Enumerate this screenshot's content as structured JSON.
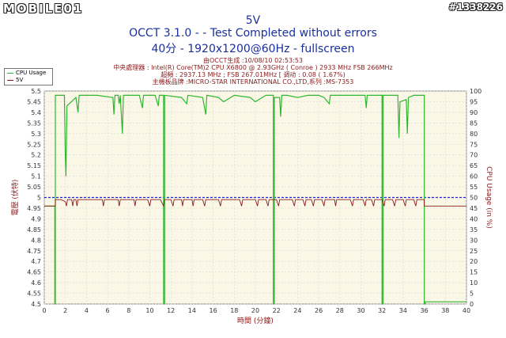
{
  "watermark": "MOBILE01",
  "photo_id": "#1338226",
  "title_lines": [
    "5V",
    "OCCT 3.1.0 -  - Test Completed without errors",
    "40分 - 1920x1200@60Hz - fullscreen"
  ],
  "info_lines": [
    "由OCCT生成 :10/08/10 02:53:53",
    "中央處理器 : Intel(R) Core(TM)2 CPU X6800 @ 2.93GHz ( Conroe ) 2933 MHz FSB 266MHz",
    "超頻 : 2937.13 MHz ; FSB 267.01MHz [ 调动 : 0.08 ( 1.67%)",
    "主機板品牌 :MICRO-STAR INTERNATIONAL CO.,LTD,系列 :MS-7353"
  ],
  "chart_data": {
    "type": "line",
    "xlabel": "時間 (分鐘)",
    "ylabel": "電壓 (伏特)",
    "y2label": "CPU Usage (in %)",
    "xlim": [
      0,
      40
    ],
    "ylim": [
      4.5,
      5.5
    ],
    "y2lim": [
      0,
      100
    ],
    "x_ticks": [
      0,
      2,
      4,
      6,
      8,
      10,
      12,
      14,
      16,
      18,
      20,
      22,
      24,
      26,
      28,
      30,
      32,
      34,
      36,
      38,
      40
    ],
    "y_ticks": [
      4.5,
      4.55,
      4.6,
      4.65,
      4.7,
      4.75,
      4.8,
      4.85,
      4.9,
      4.95,
      5,
      5.05,
      5.1,
      5.15,
      5.2,
      5.25,
      5.3,
      5.35,
      5.4,
      5.45,
      5.5
    ],
    "y2_ticks": [
      0,
      5,
      10,
      15,
      20,
      25,
      30,
      35,
      40,
      45,
      50,
      55,
      60,
      65,
      70,
      75,
      80,
      85,
      90,
      95,
      100
    ],
    "grid": true,
    "legend_position": "top-left",
    "series": [
      {
        "name": "CPU Usage",
        "axis": "right",
        "color": "#2fb82f",
        "points": [
          [
            0,
            46
          ],
          [
            1.0,
            46
          ],
          [
            1.0,
            0
          ],
          [
            1.05,
            0
          ],
          [
            1.05,
            98
          ],
          [
            1.9,
            98
          ],
          [
            2.0,
            68
          ],
          [
            2.05,
            60
          ],
          [
            2.15,
            93
          ],
          [
            3.0,
            97
          ],
          [
            3.2,
            90
          ],
          [
            3.3,
            98
          ],
          [
            5.0,
            98
          ],
          [
            6.5,
            97
          ],
          [
            6.6,
            89
          ],
          [
            6.7,
            98
          ],
          [
            7.0,
            98
          ],
          [
            7.1,
            94
          ],
          [
            7.2,
            98
          ],
          [
            7.2,
            98
          ],
          [
            7.4,
            80
          ],
          [
            7.5,
            98
          ],
          [
            9.0,
            98
          ],
          [
            9.3,
            92
          ],
          [
            9.4,
            98
          ],
          [
            10.5,
            98
          ],
          [
            10.8,
            93
          ],
          [
            10.9,
            98
          ],
          [
            11.3,
            98
          ],
          [
            11.3,
            0
          ],
          [
            11.4,
            0
          ],
          [
            11.4,
            98
          ],
          [
            13.0,
            97
          ],
          [
            13.5,
            94
          ],
          [
            13.6,
            98
          ],
          [
            15.0,
            97
          ],
          [
            15.3,
            89
          ],
          [
            15.4,
            98
          ],
          [
            16.5,
            97
          ],
          [
            17.0,
            95
          ],
          [
            18.0,
            98
          ],
          [
            19.5,
            97
          ],
          [
            20.0,
            95
          ],
          [
            21.0,
            98
          ],
          [
            21.7,
            98
          ],
          [
            21.7,
            0
          ],
          [
            21.8,
            0
          ],
          [
            21.8,
            97
          ],
          [
            22.3,
            97
          ],
          [
            22.4,
            88
          ],
          [
            22.5,
            98
          ],
          [
            23.0,
            98
          ],
          [
            24.0,
            97
          ],
          [
            25.0,
            98
          ],
          [
            26.0,
            98
          ],
          [
            26.5,
            97
          ],
          [
            27.0,
            94
          ],
          [
            27.1,
            98
          ],
          [
            28.0,
            98
          ],
          [
            29.0,
            98
          ],
          [
            30.4,
            98
          ],
          [
            30.5,
            92
          ],
          [
            30.6,
            98
          ],
          [
            31.0,
            98
          ],
          [
            32.0,
            98
          ],
          [
            32.0,
            0
          ],
          [
            32.1,
            0
          ],
          [
            32.1,
            98
          ],
          [
            33.0,
            98
          ],
          [
            33.5,
            98
          ],
          [
            33.6,
            78
          ],
          [
            33.7,
            95
          ],
          [
            34.3,
            96
          ],
          [
            34.4,
            80
          ],
          [
            34.5,
            97
          ],
          [
            35.0,
            98
          ],
          [
            36.0,
            98
          ],
          [
            36.0,
            0
          ],
          [
            36.1,
            0
          ],
          [
            36.1,
            1
          ],
          [
            40,
            1
          ]
        ]
      },
      {
        "name": "5V",
        "axis": "left",
        "color": "#8b1a1a",
        "points": [
          [
            0,
            4.96
          ],
          [
            1.05,
            4.96
          ],
          [
            1.05,
            4.99
          ],
          [
            1.6,
            4.99
          ],
          [
            2.0,
            4.98
          ],
          [
            2.1,
            4.96
          ],
          [
            2.2,
            4.99
          ],
          [
            2.6,
            4.99
          ],
          [
            2.7,
            4.96
          ],
          [
            2.8,
            4.99
          ],
          [
            3.0,
            4.99
          ],
          [
            3.1,
            4.96
          ],
          [
            3.2,
            4.99
          ],
          [
            4.5,
            4.99
          ],
          [
            5.5,
            4.99
          ],
          [
            5.6,
            4.96
          ],
          [
            5.7,
            4.99
          ],
          [
            7.0,
            4.99
          ],
          [
            7.1,
            4.96
          ],
          [
            7.2,
            4.99
          ],
          [
            8.5,
            4.99
          ],
          [
            8.6,
            4.96
          ],
          [
            8.7,
            4.99
          ],
          [
            9.8,
            4.99
          ],
          [
            10.0,
            4.96
          ],
          [
            10.1,
            4.99
          ],
          [
            11.0,
            4.99
          ],
          [
            11.3,
            4.96
          ],
          [
            11.4,
            4.99
          ],
          [
            12.0,
            4.99
          ],
          [
            12.2,
            4.96
          ],
          [
            12.3,
            4.99
          ],
          [
            13.0,
            4.99
          ],
          [
            13.1,
            4.96
          ],
          [
            13.2,
            4.99
          ],
          [
            14.0,
            4.99
          ],
          [
            14.1,
            4.96
          ],
          [
            14.2,
            4.99
          ],
          [
            15.0,
            4.99
          ],
          [
            15.2,
            4.96
          ],
          [
            15.3,
            4.99
          ],
          [
            16.5,
            4.99
          ],
          [
            16.7,
            4.96
          ],
          [
            16.8,
            4.99
          ],
          [
            18.5,
            4.99
          ],
          [
            18.7,
            4.96
          ],
          [
            18.8,
            4.99
          ],
          [
            20.0,
            4.99
          ],
          [
            20.2,
            4.96
          ],
          [
            20.3,
            4.99
          ],
          [
            21.0,
            4.99
          ],
          [
            21.2,
            4.96
          ],
          [
            21.3,
            4.99
          ],
          [
            22.0,
            4.99
          ],
          [
            22.2,
            4.96
          ],
          [
            22.3,
            4.99
          ],
          [
            23.5,
            4.99
          ],
          [
            23.7,
            4.96
          ],
          [
            23.8,
            4.99
          ],
          [
            24.5,
            4.99
          ],
          [
            24.7,
            4.96
          ],
          [
            24.8,
            4.99
          ],
          [
            25.3,
            4.99
          ],
          [
            25.5,
            4.96
          ],
          [
            25.6,
            4.99
          ],
          [
            26.3,
            4.99
          ],
          [
            26.5,
            4.96
          ],
          [
            26.6,
            4.99
          ],
          [
            27.5,
            4.99
          ],
          [
            27.6,
            4.96
          ],
          [
            27.7,
            4.99
          ],
          [
            29.0,
            4.99
          ],
          [
            29.2,
            4.96
          ],
          [
            29.3,
            4.99
          ],
          [
            30.2,
            4.99
          ],
          [
            30.4,
            4.96
          ],
          [
            30.5,
            4.99
          ],
          [
            31.0,
            4.99
          ],
          [
            31.2,
            4.96
          ],
          [
            31.3,
            4.99
          ],
          [
            32.0,
            4.99
          ],
          [
            32.2,
            4.96
          ],
          [
            32.3,
            4.99
          ],
          [
            33.0,
            4.99
          ],
          [
            33.2,
            4.96
          ],
          [
            33.3,
            4.99
          ],
          [
            34.0,
            4.99
          ],
          [
            34.2,
            4.96
          ],
          [
            34.3,
            4.99
          ],
          [
            35.0,
            4.99
          ],
          [
            35.2,
            4.96
          ],
          [
            35.3,
            4.99
          ],
          [
            36.0,
            4.99
          ],
          [
            36.0,
            4.96
          ],
          [
            40,
            4.96
          ]
        ]
      }
    ],
    "reference_line": {
      "value": 5.0,
      "color": "#2323d8"
    }
  },
  "colors": {
    "plot_bg": "#fbf7e7",
    "grid": "#d8d8d8",
    "axis_label_red": "#8b1a1a",
    "title_blue": "#1a2fa0"
  }
}
